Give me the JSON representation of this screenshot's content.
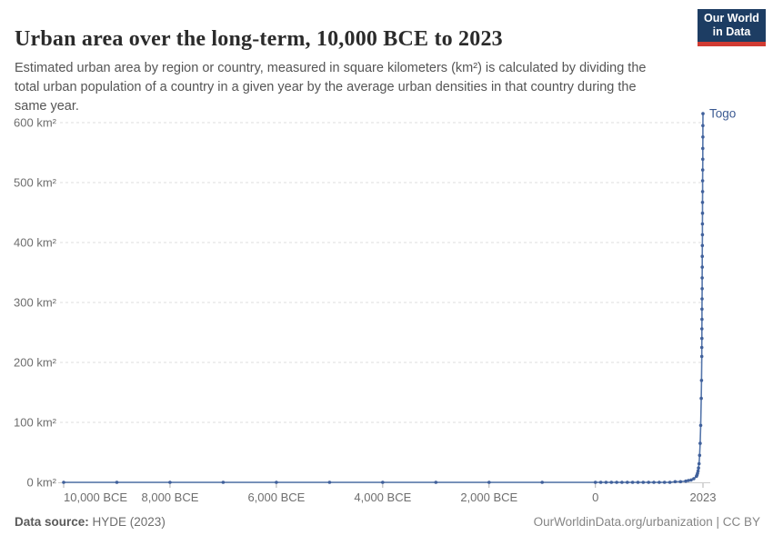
{
  "header": {
    "title": "Urban area over the long-term, 10,000 BCE to 2023",
    "subtitle": "Estimated urban area by region or country, measured in square kilometers (km²) is calculated by dividing the total urban population of a country in a given year by the average urban densities in that country during the same year."
  },
  "logo": {
    "line1": "Our World",
    "line2": "in Data",
    "bg_color": "#1d3d63",
    "bar_color": "#d13b32"
  },
  "footer": {
    "source_label": "Data source:",
    "source_value": " HYDE (2023)",
    "right": "OurWorldinData.org/urbanization | CC BY"
  },
  "colors": {
    "line": "#5576ab",
    "marker": "#40609b",
    "series_label": "#3b5a92",
    "grid": "#dedede",
    "axis": "#cccccc",
    "tick": "#b0b0b0",
    "tick_label": "#6e6e6e"
  },
  "chart_data": {
    "type": "line",
    "title": "Urban area over the long-term, 10,000 BCE to 2023",
    "xlabel": "",
    "ylabel": "",
    "xlim": [
      -10000,
      2023
    ],
    "ylim": [
      0,
      600
    ],
    "grid": true,
    "legend_position": "series-end-label",
    "y_ticks": [
      {
        "value": 0,
        "label": "0 km²"
      },
      {
        "value": 100,
        "label": "100 km²"
      },
      {
        "value": 200,
        "label": "200 km²"
      },
      {
        "value": 300,
        "label": "300 km²"
      },
      {
        "value": 400,
        "label": "400 km²"
      },
      {
        "value": 500,
        "label": "500 km²"
      },
      {
        "value": 600,
        "label": "600 km²"
      }
    ],
    "x_ticks": [
      {
        "value": -10000,
        "label": "10,000 BCE",
        "align": "start"
      },
      {
        "value": -8000,
        "label": "8,000 BCE"
      },
      {
        "value": -6000,
        "label": "6,000 BCE"
      },
      {
        "value": -4000,
        "label": "4,000 BCE"
      },
      {
        "value": -2000,
        "label": "2,000 BCE"
      },
      {
        "value": 0,
        "label": "0"
      },
      {
        "value": 2023,
        "label": "2023"
      }
    ],
    "series": [
      {
        "name": "Togo",
        "end_label": "Togo",
        "points": [
          [
            -10000,
            0
          ],
          [
            -9000,
            0
          ],
          [
            -8000,
            0
          ],
          [
            -7000,
            0
          ],
          [
            -6000,
            0
          ],
          [
            -5000,
            0
          ],
          [
            -4000,
            0
          ],
          [
            -3000,
            0
          ],
          [
            -2000,
            0
          ],
          [
            -1000,
            0
          ],
          [
            0,
            0
          ],
          [
            100,
            0
          ],
          [
            200,
            0
          ],
          [
            300,
            0
          ],
          [
            400,
            0
          ],
          [
            500,
            0
          ],
          [
            600,
            0
          ],
          [
            700,
            0
          ],
          [
            800,
            0
          ],
          [
            900,
            0
          ],
          [
            1000,
            0
          ],
          [
            1100,
            0
          ],
          [
            1200,
            0
          ],
          [
            1300,
            0
          ],
          [
            1400,
            0
          ],
          [
            1500,
            1
          ],
          [
            1600,
            1
          ],
          [
            1700,
            2
          ],
          [
            1750,
            3
          ],
          [
            1800,
            4
          ],
          [
            1850,
            6
          ],
          [
            1900,
            10
          ],
          [
            1910,
            12
          ],
          [
            1920,
            15
          ],
          [
            1930,
            19
          ],
          [
            1940,
            24
          ],
          [
            1950,
            31
          ],
          [
            1960,
            45
          ],
          [
            1970,
            65
          ],
          [
            1980,
            95
          ],
          [
            1990,
            140
          ],
          [
            1995,
            170
          ],
          [
            2000,
            210
          ],
          [
            2001,
            225
          ],
          [
            2002,
            240
          ],
          [
            2003,
            256
          ],
          [
            2004,
            272
          ],
          [
            2005,
            289
          ],
          [
            2006,
            306
          ],
          [
            2007,
            323
          ],
          [
            2008,
            341
          ],
          [
            2009,
            359
          ],
          [
            2010,
            377
          ],
          [
            2011,
            395
          ],
          [
            2012,
            413
          ],
          [
            2013,
            431
          ],
          [
            2014,
            449
          ],
          [
            2015,
            467
          ],
          [
            2016,
            485
          ],
          [
            2017,
            503
          ],
          [
            2018,
            521
          ],
          [
            2019,
            539
          ],
          [
            2020,
            557
          ],
          [
            2021,
            576
          ],
          [
            2022,
            595
          ],
          [
            2023,
            615
          ]
        ]
      }
    ]
  }
}
